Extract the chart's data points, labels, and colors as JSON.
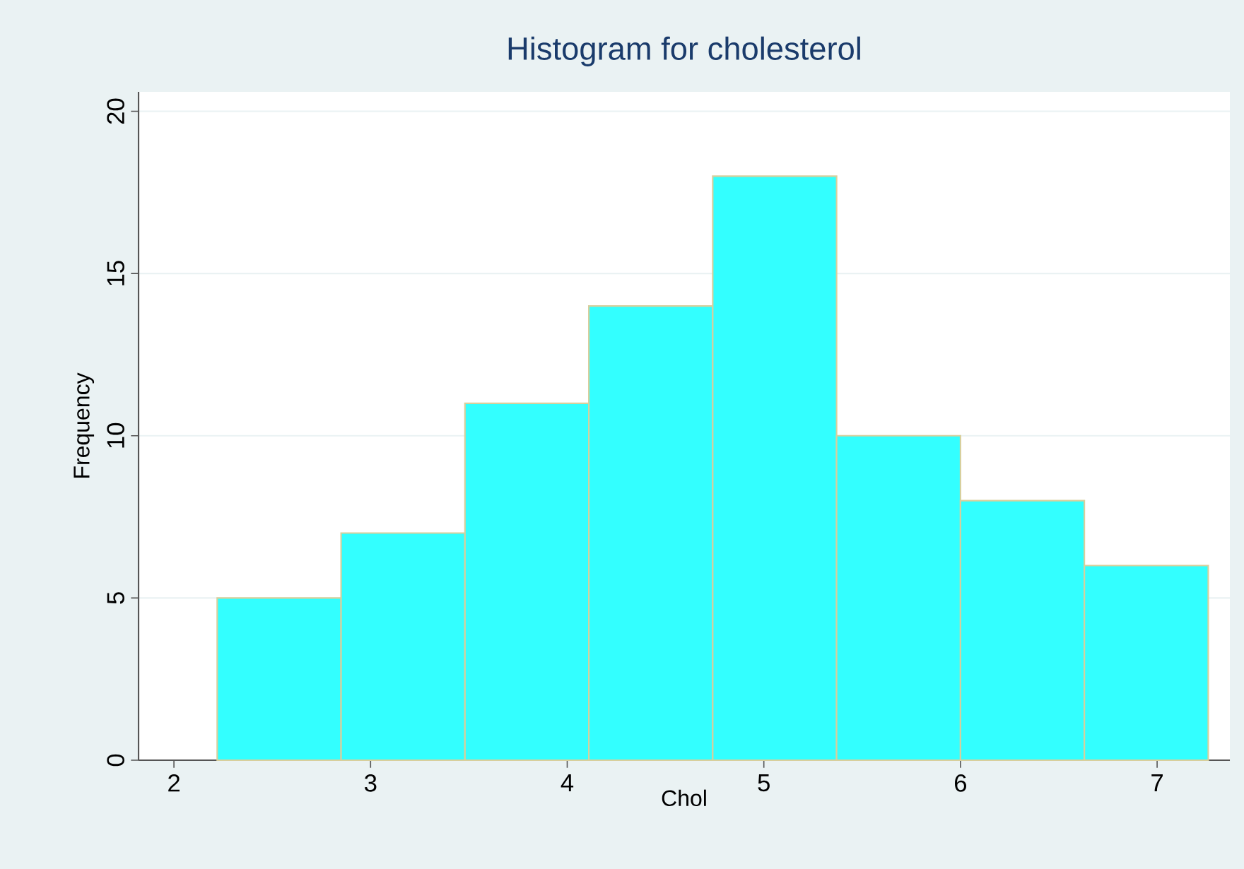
{
  "chart_data": {
    "type": "histogram",
    "title": "Histogram for cholesterol",
    "xlabel": "Chol",
    "ylabel": "Frequency",
    "bins": [
      2.22,
      2.85,
      3.48,
      4.11,
      4.74,
      5.37,
      6.0,
      6.63,
      7.26
    ],
    "values": [
      5,
      7,
      11,
      14,
      18,
      10,
      8,
      6
    ],
    "color": "#33ffff",
    "xlim": [
      1.82,
      7.37
    ],
    "ylim": [
      0,
      20.6
    ],
    "xticks": [
      2,
      3,
      4,
      5,
      6,
      7
    ],
    "yticks": [
      0,
      5,
      10,
      15,
      20
    ],
    "grid": "y"
  }
}
